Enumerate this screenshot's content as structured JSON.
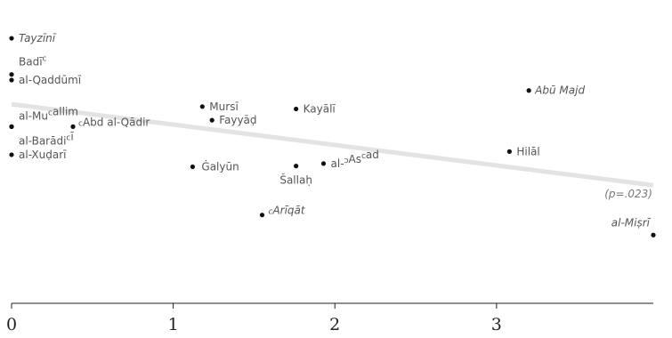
{
  "chart_data": {
    "type": "scatter",
    "title": "",
    "xlabel": "",
    "ylabel": "",
    "xlim": [
      0,
      3.97
    ],
    "ylim": [
      -1.3,
      2.2
    ],
    "x_ticks": [
      0,
      1,
      2,
      3
    ],
    "x_tick_labels": [
      "0",
      "1",
      "2",
      "3"
    ],
    "grid": false,
    "legend": "none",
    "colors": {
      "point": "#111111",
      "label": "#555555",
      "trend": "#e3e3e3",
      "axis": "#222222"
    },
    "points": [
      {
        "x": 0.0,
        "y": 2.0,
        "label": "Tayzīnī"
      },
      {
        "x": 0.0,
        "y": 1.55,
        "label": "Badī",
        "sup": "c"
      },
      {
        "x": 0.0,
        "y": 1.48,
        "label": "al-Qaddūmī"
      },
      {
        "x": 0.0,
        "y": 0.9,
        "label": "al-Mu",
        "sup": "c",
        "label_after": "allim"
      },
      {
        "x": 0.0,
        "y": 0.9,
        "label": "al-Barādi",
        "sup": "c",
        "label_after": "ī"
      },
      {
        "x": 0.0,
        "y": 0.55,
        "label": "al-Xuḍarī"
      },
      {
        "x": 0.38,
        "y": 0.9,
        "label": "Abd al-Qādir",
        "sup_before": "c"
      },
      {
        "x": 1.12,
        "y": 0.4,
        "label": "Ġalyūn"
      },
      {
        "x": 1.18,
        "y": 1.15,
        "label": "Mursī"
      },
      {
        "x": 1.24,
        "y": 0.98,
        "label": "Fayyāḍ"
      },
      {
        "x": 1.55,
        "y": -0.2,
        "label": "Arīqāt",
        "sup_before": "c"
      },
      {
        "x": 1.76,
        "y": 0.41,
        "label": "Šallaḥ"
      },
      {
        "x": 1.76,
        "y": 1.12,
        "label": "Kayālī"
      },
      {
        "x": 1.93,
        "y": 0.44,
        "label": "al-",
        "sup": "ɔ",
        "label_mid": "As",
        "sup2": "c",
        "label_after": "ad"
      },
      {
        "x": 3.08,
        "y": 0.59,
        "label": "Hilāl"
      },
      {
        "x": 3.2,
        "y": 1.35,
        "label": "Abū Majd"
      },
      {
        "x": 3.97,
        "y": -0.45,
        "label": "al-Miṣrī"
      }
    ],
    "trend_line": {
      "x": [
        0,
        3.97
      ],
      "y": [
        1.18,
        0.17
      ]
    },
    "annotations": [
      "(p=.023)"
    ]
  }
}
